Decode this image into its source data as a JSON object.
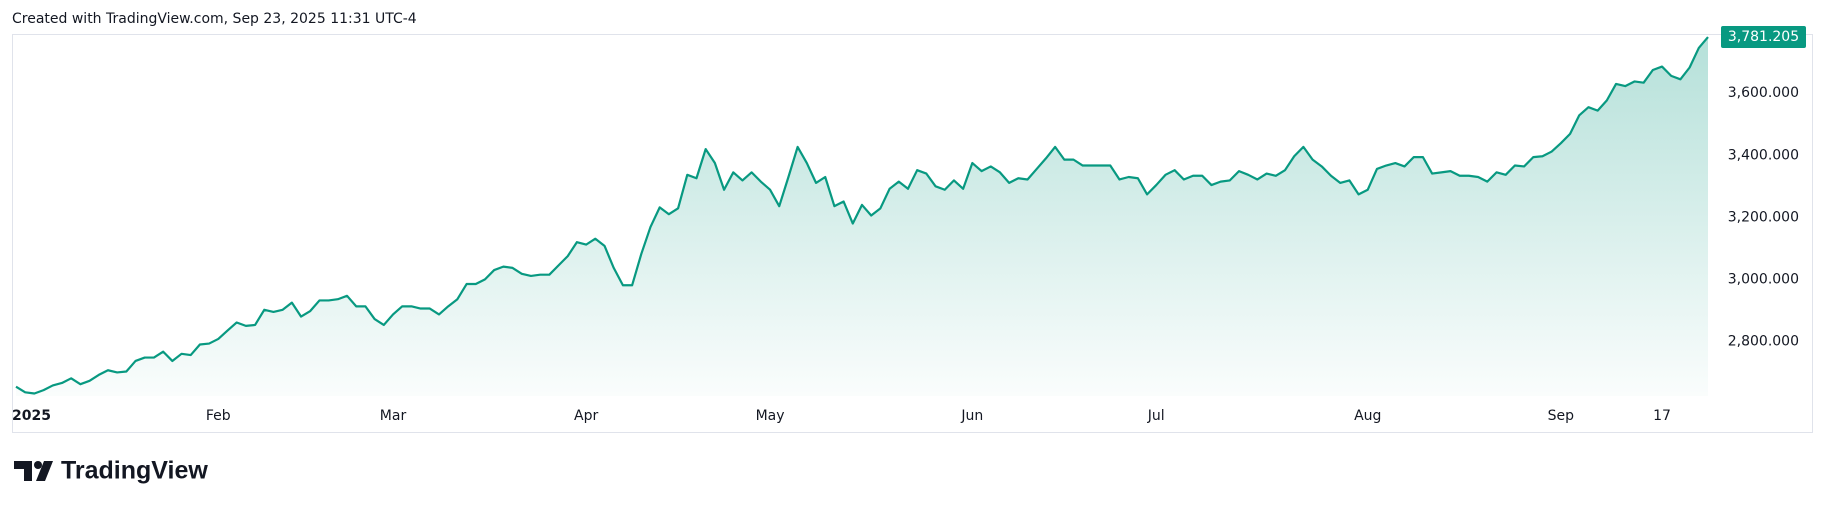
{
  "header": "Created with TradingView.com, Sep 23, 2025 11:31 UTC-4",
  "logo": "TradingView",
  "chart_data": {
    "type": "area",
    "color": "#089981",
    "grid": false,
    "categories": [
      "2025",
      null,
      null,
      null,
      null,
      null,
      null,
      null,
      null,
      null,
      null,
      null,
      null,
      null,
      null,
      null,
      null,
      null,
      null,
      null,
      null,
      null,
      "Feb",
      null,
      null,
      null,
      null,
      null,
      null,
      null,
      null,
      null,
      null,
      null,
      null,
      null,
      null,
      null,
      null,
      null,
      null,
      "Mar",
      null,
      null,
      null,
      null,
      null,
      null,
      null,
      null,
      null,
      null,
      null,
      null,
      null,
      null,
      null,
      null,
      null,
      null,
      null,
      null,
      "Apr",
      null,
      null,
      null,
      null,
      null,
      null,
      null,
      null,
      null,
      null,
      null,
      null,
      null,
      null,
      null,
      null,
      null,
      null,
      null,
      "May",
      null,
      null,
      null,
      null,
      null,
      null,
      null,
      null,
      null,
      null,
      null,
      null,
      null,
      null,
      null,
      null,
      null,
      null,
      null,
      null,
      null,
      "Jun",
      null,
      null,
      null,
      null,
      null,
      null,
      null,
      null,
      null,
      null,
      null,
      null,
      null,
      null,
      null,
      null,
      null,
      null,
      null,
      "Jul",
      null,
      null,
      null,
      null,
      null,
      null,
      null,
      null,
      null,
      null,
      null,
      null,
      null,
      null,
      null,
      null,
      null,
      null,
      null,
      null,
      null,
      null,
      "Aug",
      null,
      null,
      null,
      null,
      null,
      null,
      null,
      null,
      null,
      null,
      null,
      null,
      null,
      null,
      null,
      null,
      null,
      null,
      null,
      null,
      "Sep",
      null,
      null,
      null,
      null,
      null,
      null,
      null,
      null,
      null,
      null,
      "17",
      null,
      null,
      null,
      null,
      null
    ],
    "values": [
      2654,
      2636,
      2632,
      2643,
      2658,
      2666,
      2681,
      2662,
      2673,
      2692,
      2707,
      2700,
      2703,
      2737,
      2748,
      2748,
      2767,
      2737,
      2760,
      2756,
      2790,
      2793,
      2808,
      2835,
      2861,
      2850,
      2853,
      2902,
      2895,
      2902,
      2925,
      2880,
      2898,
      2932,
      2932,
      2936,
      2947,
      2913,
      2913,
      2872,
      2853,
      2887,
      2913,
      2913,
      2906,
      2906,
      2887,
      2913,
      2936,
      2985,
      2985,
      3000,
      3030,
      3041,
      3037,
      3018,
      3011,
      3015,
      3015,
      3045,
      3075,
      3120,
      3112,
      3131,
      3108,
      3037,
      2981,
      2981,
      3082,
      3169,
      3232,
      3210,
      3229,
      3337,
      3326,
      3420,
      3375,
      3289,
      3345,
      3319,
      3345,
      3315,
      3289,
      3236,
      3330,
      3427,
      3375,
      3311,
      3330,
      3236,
      3251,
      3180,
      3240,
      3206,
      3229,
      3292,
      3315,
      3292,
      3352,
      3341,
      3300,
      3289,
      3319,
      3292,
      3375,
      3349,
      3364,
      3345,
      3311,
      3326,
      3322,
      3356,
      3390,
      3427,
      3386,
      3386,
      3367,
      3367,
      3367,
      3367,
      3322,
      3330,
      3326,
      3274,
      3304,
      3337,
      3352,
      3322,
      3334,
      3334,
      3304,
      3315,
      3319,
      3349,
      3337,
      3322,
      3341,
      3334,
      3352,
      3397,
      3427,
      3386,
      3364,
      3334,
      3311,
      3319,
      3274,
      3289,
      3356,
      3367,
      3375,
      3364,
      3394,
      3394,
      3341,
      3345,
      3349,
      3334,
      3334,
      3330,
      3315,
      3345,
      3337,
      3367,
      3364,
      3394,
      3397,
      3412,
      3439,
      3469,
      3529,
      3555,
      3544,
      3577,
      3630,
      3623,
      3638,
      3634,
      3675,
      3686,
      3656,
      3645,
      3683,
      3746,
      3781.205
    ],
    "value_labels": [
      null,
      null,
      null,
      null,
      null,
      null,
      null,
      null,
      null,
      null,
      null,
      null,
      null,
      null,
      null,
      null,
      null,
      null,
      null,
      null,
      null,
      null,
      null,
      null,
      null,
      null,
      null,
      null,
      null,
      null,
      null,
      null,
      null,
      null,
      null,
      null,
      null,
      null,
      null,
      null,
      null,
      null,
      null,
      null,
      null,
      null,
      null,
      null,
      null,
      null,
      null,
      null,
      null,
      null,
      null,
      null,
      null,
      null,
      null,
      null,
      null,
      null,
      null,
      null,
      null,
      null,
      null,
      null,
      null,
      null,
      null,
      null,
      null,
      null,
      null,
      null,
      null,
      null,
      null,
      null,
      null,
      null,
      null,
      null,
      null,
      null,
      null,
      null,
      null,
      null,
      null,
      null,
      null,
      null,
      null,
      null,
      null,
      null,
      null,
      null,
      null,
      null,
      null,
      null,
      null,
      null,
      null,
      null,
      null,
      null,
      null,
      null,
      null,
      null,
      null,
      null,
      null,
      null,
      null,
      null,
      null,
      null,
      null,
      null,
      null,
      null,
      null,
      null,
      null,
      null,
      null,
      null,
      null,
      null,
      null,
      null,
      null,
      null,
      null,
      null,
      null,
      null,
      null,
      null,
      null,
      null,
      null,
      null,
      null,
      null,
      null,
      null,
      null,
      null,
      null,
      null,
      null,
      null,
      null,
      null,
      null,
      null,
      null,
      null,
      null,
      null,
      null,
      null,
      null,
      null,
      null,
      null,
      null,
      null,
      null,
      null,
      null,
      null,
      null,
      null,
      null,
      null,
      null,
      null,
      "3,781.205"
    ],
    "ylim": [
      2624,
      3791
    ],
    "yticks": [
      {
        "value": 2800,
        "label": "2,800.000"
      },
      {
        "value": 3000,
        "label": "3,000.000"
      },
      {
        "value": 3200,
        "label": "3,200.000"
      },
      {
        "value": 3400,
        "label": "3,400.000"
      },
      {
        "value": 3600,
        "label": "3,600.000"
      }
    ]
  }
}
